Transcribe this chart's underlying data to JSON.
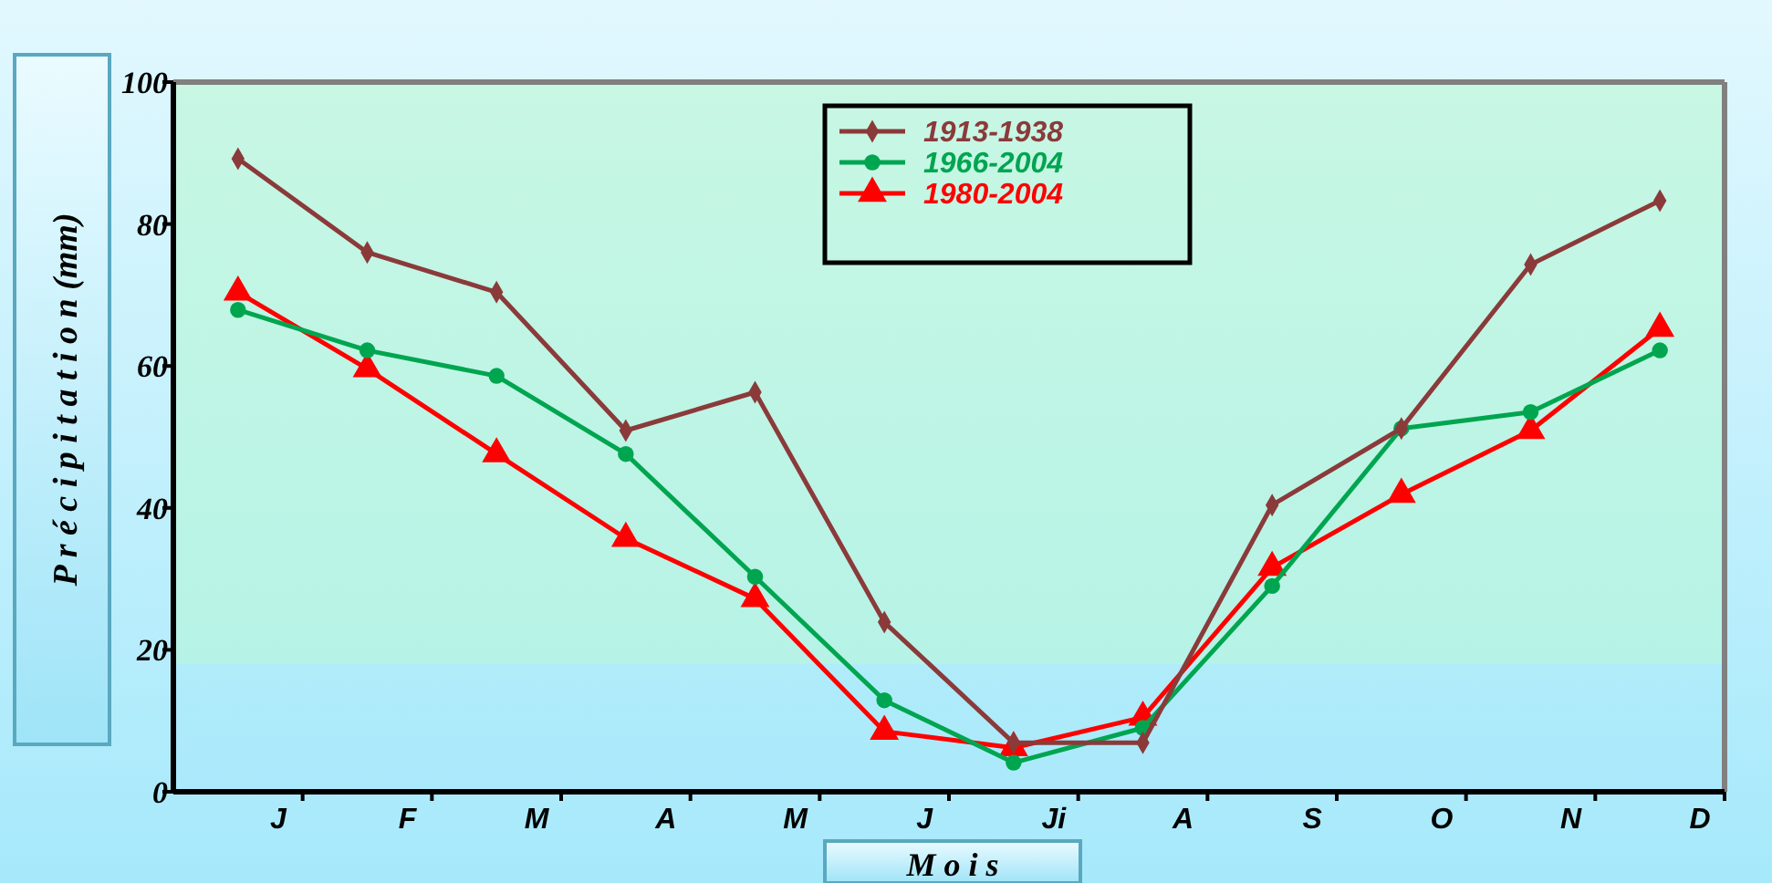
{
  "chart_data": {
    "type": "line",
    "xlabel": "M o i s",
    "ylabel": "P r é c i p i t a t i o n  (mm)",
    "categories": [
      "J",
      "F",
      "M",
      "A",
      "M",
      "J",
      "Ji",
      "A",
      "S",
      "O",
      "N",
      "D"
    ],
    "series": [
      {
        "name": "1913-1938",
        "color": "#8b3a3a",
        "marker": "diamond",
        "values": [
          89.2,
          76,
          70.4,
          50.9,
          56.3,
          23.9,
          6.9,
          6.9,
          40.4,
          51.2,
          74.3,
          83.3
        ]
      },
      {
        "name": "1966-2004",
        "color": "#00a550",
        "marker": "circle",
        "values": [
          67.9,
          62.2,
          58.6,
          47.6,
          30.3,
          12.9,
          4.1,
          9,
          29,
          51.2,
          53.5,
          62.2
        ]
      },
      {
        "name": "1980-2004",
        "color": "#ff0000",
        "marker": "triangle",
        "values": [
          70.4,
          59.6,
          47.6,
          35.7,
          27.2,
          8.5,
          6.2,
          10.5,
          31.6,
          41.9,
          50.9,
          65.3
        ]
      }
    ],
    "ylim": [
      0,
      100
    ],
    "yticks": [
      0,
      20,
      40,
      60,
      80,
      100
    ],
    "grid": false,
    "legend": "top"
  }
}
